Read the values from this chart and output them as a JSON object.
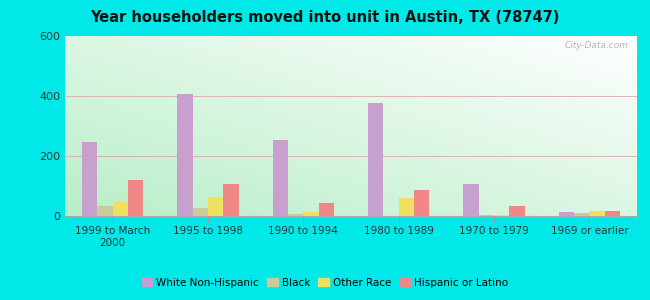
{
  "title": "Year householders moved into unit in Austin, TX (78747)",
  "categories": [
    "1999 to March\n2000",
    "1995 to 1998",
    "1990 to 1994",
    "1980 to 1989",
    "1970 to 1979",
    "1969 or earlier"
  ],
  "series": {
    "White Non-Hispanic": [
      248,
      408,
      255,
      375,
      108,
      15
    ],
    "Black": [
      35,
      28,
      8,
      0,
      5,
      10
    ],
    "Other Race": [
      48,
      65,
      12,
      60,
      5,
      18
    ],
    "Hispanic or Latino": [
      120,
      108,
      42,
      88,
      35,
      18
    ]
  },
  "colors": {
    "White Non-Hispanic": "#c8a0d0",
    "Black": "#c8cc99",
    "Other Race": "#f0e060",
    "Hispanic or Latino": "#f08888"
  },
  "ylim": [
    0,
    600
  ],
  "yticks": [
    0,
    200,
    400,
    600
  ],
  "outer_background": "#00e8e8",
  "bar_width": 0.16,
  "watermark": "City-Data.com"
}
